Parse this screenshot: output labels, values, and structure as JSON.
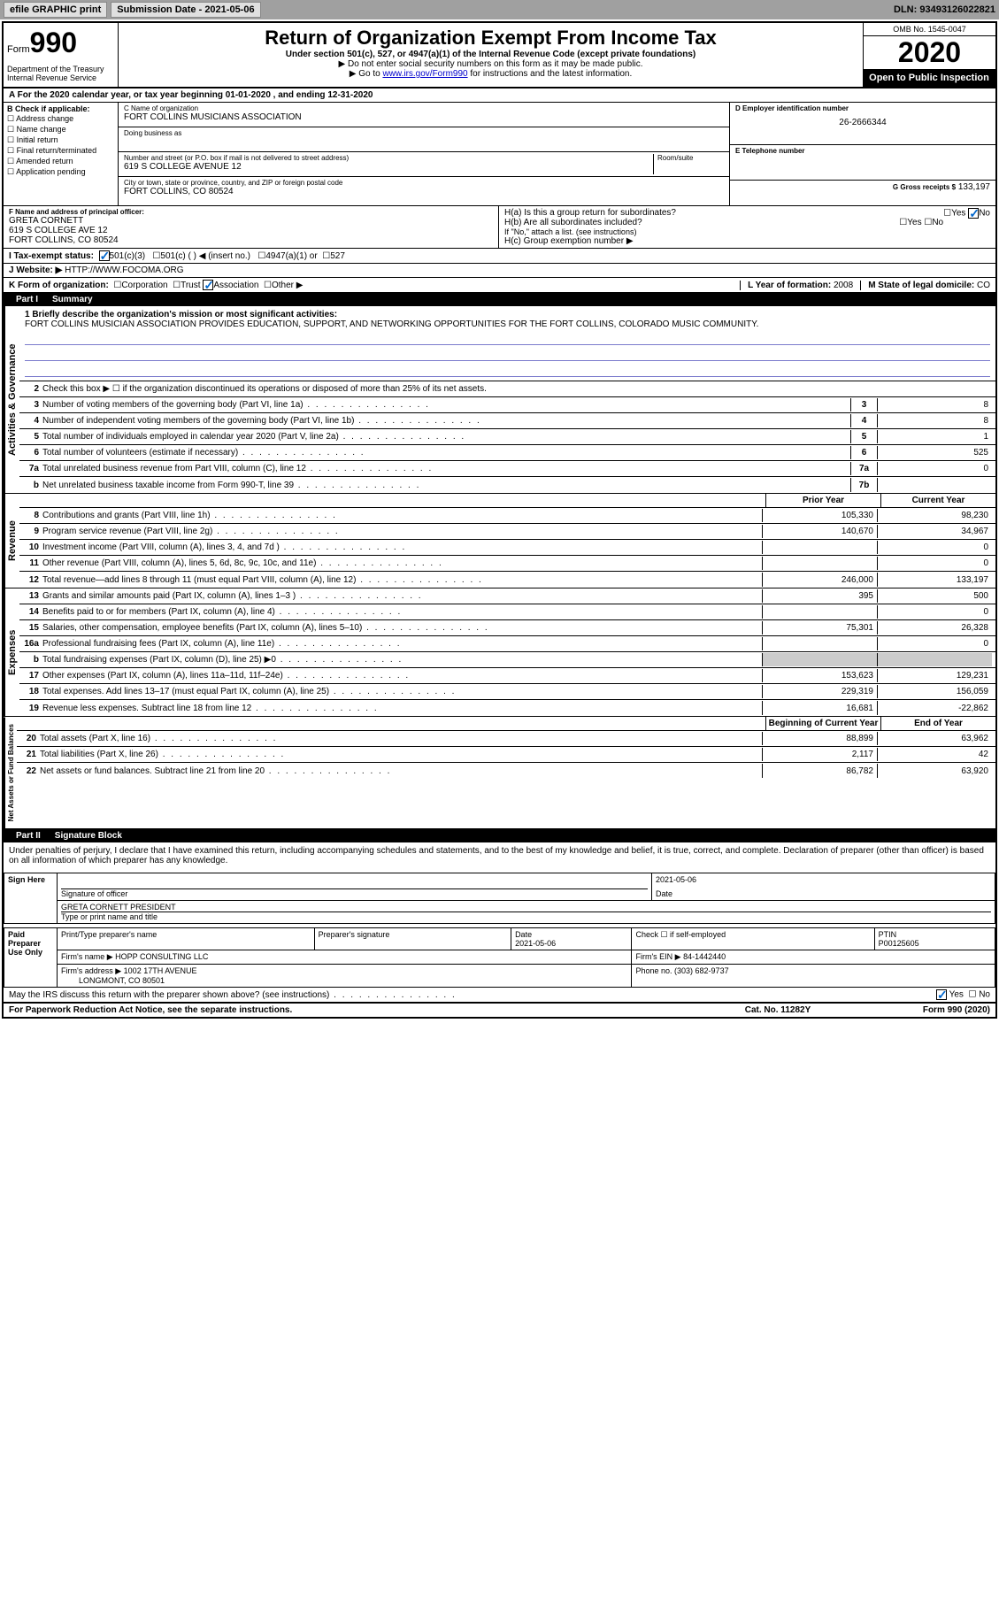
{
  "toolbar": {
    "efile": "efile GRAPHIC print",
    "submission_lbl": "Submission Date - 2021-05-06",
    "dln": "DLN: 93493126022821"
  },
  "header": {
    "form_word": "Form",
    "form_num": "990",
    "title": "Return of Organization Exempt From Income Tax",
    "sub1": "Under section 501(c), 527, or 4947(a)(1) of the Internal Revenue Code (except private foundations)",
    "sub2": "▶ Do not enter social security numbers on this form as it may be made public.",
    "sub3_pre": "▶ Go to ",
    "sub3_link": "www.irs.gov/Form990",
    "sub3_post": " for instructions and the latest information.",
    "omb": "OMB No. 1545-0047",
    "year": "2020",
    "inspect": "Open to Public Inspection",
    "dept": "Department of the Treasury\nInternal Revenue Service"
  },
  "line_a": "A For the 2020 calendar year, or tax year beginning 01-01-2020   , and ending 12-31-2020",
  "box_b": {
    "hdr": "B Check if applicable:",
    "opts": [
      "Address change",
      "Name change",
      "Initial return",
      "Final return/terminated",
      "Amended return",
      "Application pending"
    ]
  },
  "box_c": {
    "name_lbl": "C Name of organization",
    "name": "FORT COLLINS MUSICIANS ASSOCIATION",
    "dba_lbl": "Doing business as",
    "dba": "",
    "street_lbl": "Number and street (or P.O. box if mail is not delivered to street address)",
    "room_lbl": "Room/suite",
    "street": "619 S COLLEGE AVENUE 12",
    "city_lbl": "City or town, state or province, country, and ZIP or foreign postal code",
    "city": "FORT COLLINS, CO  80524"
  },
  "box_d": {
    "lbl": "D Employer identification number",
    "val": "26-2666344"
  },
  "box_e": {
    "lbl": "E Telephone number",
    "val": ""
  },
  "box_g": {
    "lbl": "G Gross receipts $",
    "val": "133,197"
  },
  "box_f": {
    "lbl": "F  Name and address of principal officer:",
    "name": "GRETA CORNETT",
    "addr1": "619 S COLLEGE AVE 12",
    "addr2": "FORT COLLINS, CO  80524"
  },
  "box_h": {
    "ha": "H(a)  Is this a group return for subordinates?",
    "hb": "H(b)  Are all subordinates included?",
    "hb_note": "If \"No,\" attach a list. (see instructions)",
    "hc": "H(c)  Group exemption number ▶",
    "yes": "Yes",
    "no": "No"
  },
  "box_i": {
    "lbl": "I  Tax-exempt status:",
    "o1": "501(c)(3)",
    "o2": "501(c) (  ) ◀ (insert no.)",
    "o3": "4947(a)(1) or",
    "o4": "527"
  },
  "box_j": {
    "lbl": "J  Website: ▶",
    "val": "HTTP://WWW.FOCOMA.ORG"
  },
  "box_k": {
    "lbl": "K Form of organization:",
    "o1": "Corporation",
    "o2": "Trust",
    "o3": "Association",
    "o4": "Other ▶"
  },
  "box_l": {
    "lbl": "L Year of formation:",
    "val": "2008"
  },
  "box_m": {
    "lbl": "M State of legal domicile:",
    "val": "CO"
  },
  "part1": {
    "num": "Part I",
    "title": "Summary",
    "q1_lbl": "1  Briefly describe the organization's mission or most significant activities:",
    "q1_val": "FORT COLLINS MUSICIAN ASSOCIATION PROVIDES EDUCATION, SUPPORT, AND NETWORKING OPPORTUNITIES FOR THE FORT COLLINS, COLORADO MUSIC COMMUNITY.",
    "q2": "Check this box ▶ ☐  if the organization discontinued its operations or disposed of more than 25% of its net assets.",
    "vert1": "Activities & Governance",
    "vert2": "Revenue",
    "vert3": "Expenses",
    "vert4": "Net Assets or Fund Balances",
    "prior": "Prior Year",
    "current": "Current Year",
    "boy": "Beginning of Current Year",
    "eoy": "End of Year",
    "rows_gov": [
      {
        "n": "3",
        "t": "Number of voting members of the governing body (Part VI, line 1a)",
        "box": "3",
        "cur": "8"
      },
      {
        "n": "4",
        "t": "Number of independent voting members of the governing body (Part VI, line 1b)",
        "box": "4",
        "cur": "8"
      },
      {
        "n": "5",
        "t": "Total number of individuals employed in calendar year 2020 (Part V, line 2a)",
        "box": "5",
        "cur": "1"
      },
      {
        "n": "6",
        "t": "Total number of volunteers (estimate if necessary)",
        "box": "6",
        "cur": "525"
      },
      {
        "n": "7a",
        "t": "Total unrelated business revenue from Part VIII, column (C), line 12",
        "box": "7a",
        "cur": "0"
      },
      {
        "n": "b",
        "t": "Net unrelated business taxable income from Form 990-T, line 39",
        "box": "7b",
        "cur": ""
      }
    ],
    "rows_rev": [
      {
        "n": "8",
        "t": "Contributions and grants (Part VIII, line 1h)",
        "prior": "105,330",
        "cur": "98,230"
      },
      {
        "n": "9",
        "t": "Program service revenue (Part VIII, line 2g)",
        "prior": "140,670",
        "cur": "34,967"
      },
      {
        "n": "10",
        "t": "Investment income (Part VIII, column (A), lines 3, 4, and 7d )",
        "prior": "",
        "cur": "0"
      },
      {
        "n": "11",
        "t": "Other revenue (Part VIII, column (A), lines 5, 6d, 8c, 9c, 10c, and 11e)",
        "prior": "",
        "cur": "0"
      },
      {
        "n": "12",
        "t": "Total revenue—add lines 8 through 11 (must equal Part VIII, column (A), line 12)",
        "prior": "246,000",
        "cur": "133,197"
      }
    ],
    "rows_exp": [
      {
        "n": "13",
        "t": "Grants and similar amounts paid (Part IX, column (A), lines 1–3 )",
        "prior": "395",
        "cur": "500"
      },
      {
        "n": "14",
        "t": "Benefits paid to or for members (Part IX, column (A), line 4)",
        "prior": "",
        "cur": "0"
      },
      {
        "n": "15",
        "t": "Salaries, other compensation, employee benefits (Part IX, column (A), lines 5–10)",
        "prior": "75,301",
        "cur": "26,328"
      },
      {
        "n": "16a",
        "t": "Professional fundraising fees (Part IX, column (A), line 11e)",
        "prior": "",
        "cur": "0"
      },
      {
        "n": "b",
        "t": "Total fundraising expenses (Part IX, column (D), line 25) ▶0",
        "prior": "_shade",
        "cur": "_shade"
      },
      {
        "n": "17",
        "t": "Other expenses (Part IX, column (A), lines 11a–11d, 11f–24e)",
        "prior": "153,623",
        "cur": "129,231"
      },
      {
        "n": "18",
        "t": "Total expenses. Add lines 13–17 (must equal Part IX, column (A), line 25)",
        "prior": "229,319",
        "cur": "156,059"
      },
      {
        "n": "19",
        "t": "Revenue less expenses. Subtract line 18 from line 12",
        "prior": "16,681",
        "cur": "-22,862"
      }
    ],
    "rows_net": [
      {
        "n": "20",
        "t": "Total assets (Part X, line 16)",
        "prior": "88,899",
        "cur": "63,962"
      },
      {
        "n": "21",
        "t": "Total liabilities (Part X, line 26)",
        "prior": "2,117",
        "cur": "42"
      },
      {
        "n": "22",
        "t": "Net assets or fund balances. Subtract line 21 from line 20",
        "prior": "86,782",
        "cur": "63,920"
      }
    ]
  },
  "part2": {
    "num": "Part II",
    "title": "Signature Block",
    "decl": "Under penalties of perjury, I declare that I have examined this return, including accompanying schedules and statements, and to the best of my knowledge and belief, it is true, correct, and complete. Declaration of preparer (other than officer) is based on all information of which preparer has any knowledge.",
    "sign_here": "Sign Here",
    "sig_officer_lbl": "Signature of officer",
    "date_lbl": "Date",
    "date_val": "2021-05-06",
    "name_title": "GRETA CORNETT PRESIDENT",
    "name_title_lbl": "Type or print name and title",
    "paid": "Paid Preparer Use Only",
    "prep_name_lbl": "Print/Type preparer's name",
    "prep_sig_lbl": "Preparer's signature",
    "prep_date": "2021-05-06",
    "prep_check": "Check ☐ if self-employed",
    "ptin_lbl": "PTIN",
    "ptin": "P00125605",
    "firm_lbl": "Firm's name  ▶",
    "firm": "HOPP CONSULTING LLC",
    "ein_lbl": "Firm's EIN ▶",
    "ein": "84-1442440",
    "addr_lbl": "Firm's address ▶",
    "addr1": "1002 17TH AVENUE",
    "addr2": "LONGMONT, CO  80501",
    "phone_lbl": "Phone no.",
    "phone": "(303) 682-9737",
    "discuss": "May the IRS discuss this return with the preparer shown above? (see instructions)",
    "yes": "Yes",
    "no": "No"
  },
  "footer": {
    "left": "For Paperwork Reduction Act Notice, see the separate instructions.",
    "mid": "Cat. No. 11282Y",
    "right": "Form 990 (2020)"
  }
}
